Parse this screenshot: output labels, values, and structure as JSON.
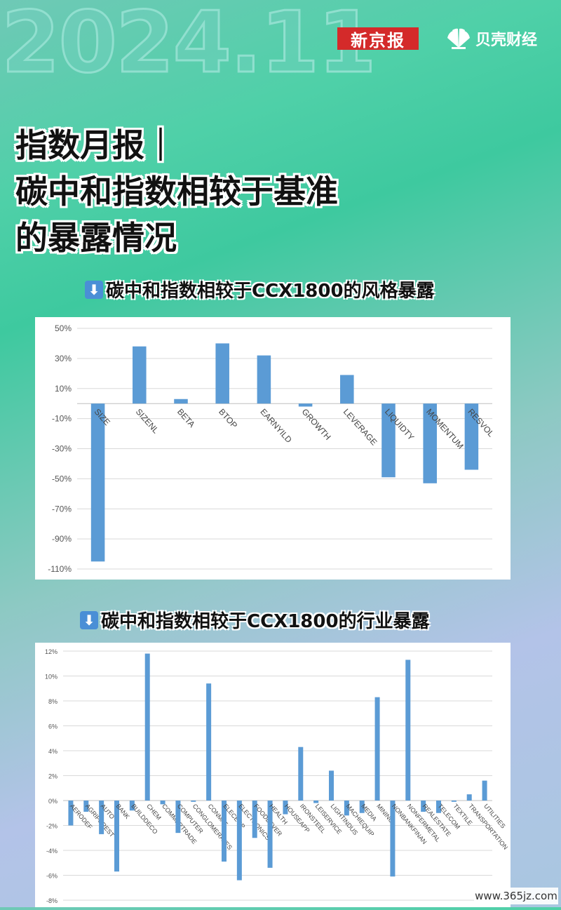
{
  "header": {
    "year": "2024.11",
    "logo_xinjingbao": "新京报",
    "logo_beike": "贝壳财经",
    "title_lines": [
      "指数月报｜",
      "碳中和指数相较于基准",
      "的暴露情况"
    ]
  },
  "sections": {
    "style_heading": "碳中和指数相较于CCX1800的风格暴露",
    "industry_heading": "碳中和指数相较于CCX1800的行业暴露"
  },
  "watermark": "www.365jz.com",
  "colors": {
    "bar": "#5b9bd5",
    "grid": "#d9d9d9",
    "arrow_box": "#4a8fd6"
  },
  "chart_data": [
    {
      "type": "bar",
      "categories": [
        "SIZE",
        "SIZENL",
        "BETA",
        "BTOP",
        "EARNYILD",
        "GROWTH",
        "LEVERAGE",
        "LIQUIDTY",
        "MOMENTUM",
        "RESVOL"
      ],
      "values": [
        -105,
        38,
        3,
        40,
        32,
        -2,
        19,
        -49,
        -53,
        -44
      ],
      "ylim": [
        -110,
        50
      ],
      "yticks": [
        50,
        30,
        10,
        -10,
        -30,
        -50,
        -70,
        -90,
        -110
      ],
      "ytick_labels": [
        "50%",
        "30%",
        "10%",
        "-10%",
        "-30%",
        "-50%",
        "-70%",
        "-90%",
        "-110%"
      ],
      "grid": true
    },
    {
      "type": "bar",
      "categories": [
        "AERODEF",
        "AGRIFOREST",
        "AUTO",
        "BANK",
        "BUILDDECO",
        "CHEM",
        "COMMERTRADE",
        "COMPUTER",
        "CONGLOMERATES",
        "CONMAT",
        "ELECEQP",
        "ELECTRONICS",
        "FOODBEVER",
        "HEALTH",
        "HOUSEAPP",
        "IRONSTEEL",
        "LEISERVICE",
        "LIGHTINDUS",
        "MACHIEQUIP",
        "MEDIA",
        "MINING",
        "NONBANKFINAN",
        "NONFERMETAL",
        "REALESTATE",
        "TELECOM",
        "TEXTILE",
        "TRANSPORTATION",
        "UTILITIES"
      ],
      "values": [
        -2.0,
        -0.9,
        -2.7,
        -5.7,
        -0.8,
        11.8,
        -0.3,
        -2.6,
        -0.1,
        9.4,
        -4.9,
        -6.4,
        -3.0,
        -5.4,
        -1.1,
        4.3,
        -0.2,
        2.4,
        -1.2,
        -1.0,
        8.3,
        -6.1,
        11.3,
        -0.9,
        -1.0,
        -0.1,
        0.5,
        1.6
      ],
      "ylim": [
        -8,
        12
      ],
      "yticks": [
        12,
        10,
        8,
        6,
        4,
        2,
        0,
        -2,
        -4,
        -6,
        -8
      ],
      "ytick_labels": [
        "12%",
        "10%",
        "8%",
        "6%",
        "4%",
        "2%",
        "0%",
        "-2%",
        "-4%",
        "-6%",
        "-8%"
      ],
      "grid": true
    }
  ]
}
